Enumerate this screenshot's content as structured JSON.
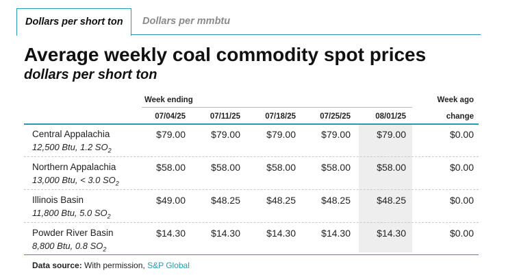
{
  "tabs": [
    {
      "label": "Dollars per short ton",
      "active": true
    },
    {
      "label": "Dollars per mmbtu",
      "active": false
    }
  ],
  "title": "Average weekly coal commodity spot prices",
  "subtitle": "dollars per short ton",
  "table": {
    "week_ending_label": "Week ending",
    "week_ago_label": "Week ago",
    "change_label": "change",
    "dates": [
      "07/04/25",
      "07/11/25",
      "07/18/25",
      "07/25/25",
      "08/01/25"
    ],
    "highlighted_date": "08/01/25",
    "rows": [
      {
        "name": "Central Appalachia",
        "sub": "12,500 Btu, 1.2 SO",
        "sub_suffix": "2",
        "values": [
          "$79.00",
          "$79.00",
          "$79.00",
          "$79.00",
          "$79.00"
        ],
        "change": "$0.00"
      },
      {
        "name": "Northern Appalachia",
        "sub": "13,000 Btu, < 3.0 SO",
        "sub_suffix": "2",
        "values": [
          "$58.00",
          "$58.00",
          "$58.00",
          "$58.00",
          "$58.00"
        ],
        "change": "$0.00"
      },
      {
        "name": "Illinois Basin",
        "sub": "11,800 Btu, 5.0 SO",
        "sub_suffix": "2",
        "values": [
          "$49.00",
          "$48.25",
          "$48.25",
          "$48.25",
          "$48.25"
        ],
        "change": "$0.00"
      },
      {
        "name": "Powder River Basin",
        "sub": "8,800 Btu, 0.8 SO",
        "sub_suffix": "2",
        "values": [
          "$14.30",
          "$14.30",
          "$14.30",
          "$14.30",
          "$14.30"
        ],
        "change": "$0.00"
      }
    ]
  },
  "source": {
    "label": "Data source:",
    "text": "With permission,",
    "link": "S&P Global"
  },
  "colors": {
    "accent": "#2a98b0",
    "highlight": "#eeeeee",
    "inactive_tab": "#8a8a8a"
  }
}
